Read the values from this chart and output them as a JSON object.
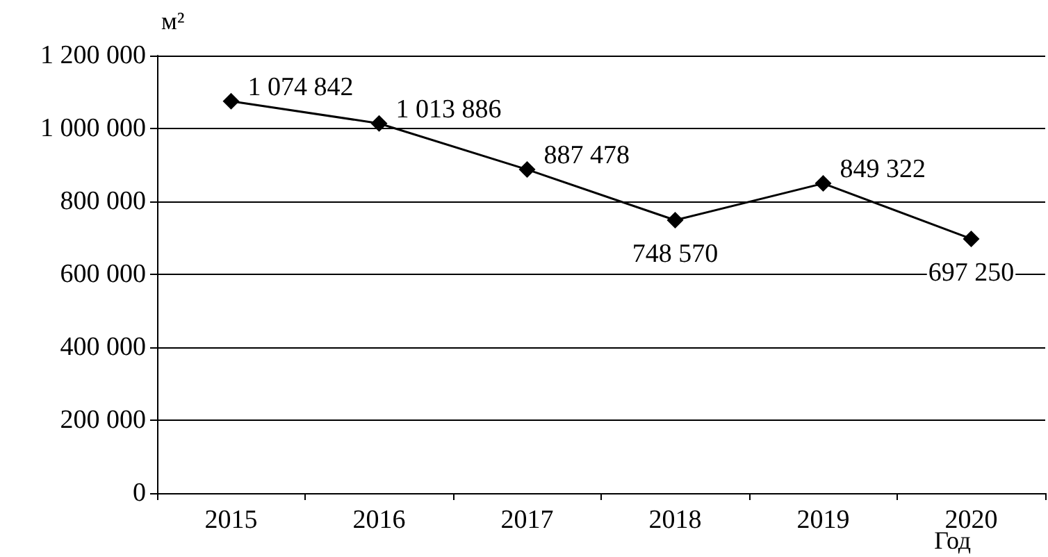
{
  "chart_data": {
    "type": "line",
    "ylabel": "м²",
    "xlabel": "Год",
    "categories": [
      "2015",
      "2016",
      "2017",
      "2018",
      "2019",
      "2020"
    ],
    "series": [
      {
        "color": "#000000",
        "values": [
          1074842,
          1013886,
          887478,
          748570,
          849322,
          697250
        ],
        "value_labels": [
          "1 074 842",
          "1 013 886",
          "887 478",
          "748 570",
          "849 322",
          "697 250"
        ]
      }
    ],
    "ylim": [
      0,
      1200000
    ],
    "yticks": [
      {
        "value": 0,
        "label": "0"
      },
      {
        "value": 200000,
        "label": "200 000"
      },
      {
        "value": 400000,
        "label": "400 000"
      },
      {
        "value": 600000,
        "label": "600 000"
      },
      {
        "value": 800000,
        "label": "800 000"
      },
      {
        "value": 1000000,
        "label": "1 000 000"
      },
      {
        "value": 1200000,
        "label": "1 200 000"
      }
    ],
    "grid": "y",
    "marker": "diamond",
    "line_style": "solid"
  }
}
